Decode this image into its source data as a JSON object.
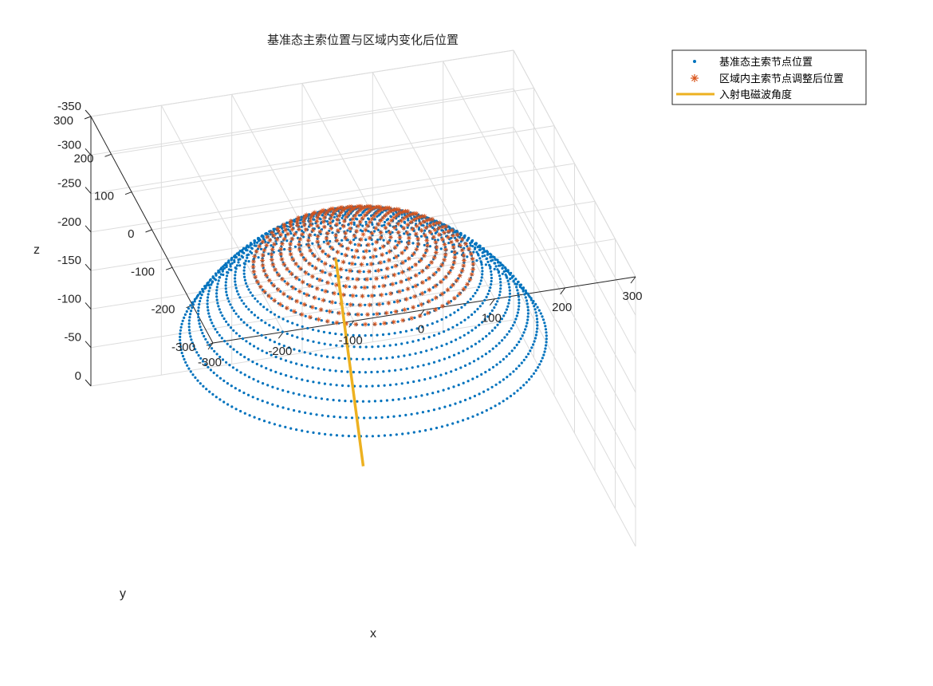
{
  "chart_data": {
    "type": "scatter3d",
    "title": "基准态主索位置与区域内变化后位置",
    "xlabel": "x",
    "ylabel": "y",
    "zlabel": "z",
    "xlim": [
      -300,
      300
    ],
    "ylim": [
      -300,
      300
    ],
    "zlim": [
      -370,
      0
    ],
    "grid": true,
    "legend_position": "top-right",
    "xticks": [
      "-300",
      "-200",
      "-100",
      "0",
      "100",
      "200",
      "300"
    ],
    "yticks": [
      "-300",
      "-200",
      "-100",
      "0",
      "100",
      "200",
      "300"
    ],
    "zticks": [
      "0",
      "-50",
      "-100",
      "-150",
      "-200",
      "-250",
      "-300",
      "-350"
    ],
    "colors": {
      "base": "#0072BD",
      "adjusted": "#D95319",
      "ray": "#EDB120",
      "axis": "#262626",
      "grid": "#dcdcdc"
    },
    "series": [
      {
        "name": "基准态主索节点位置",
        "marker": "dot",
        "surface": "sphere",
        "sphere_radius": 300.4,
        "rim_radius": 250,
        "center": [
          0,
          0,
          0
        ],
        "bottom_z": -300.4
      },
      {
        "name": "区域内主索节点调整后位置",
        "marker": "asterisk",
        "surface": "paraboloid",
        "vertex_z": -300.9,
        "focal_length": 140.1,
        "aperture_radius": 150,
        "axis_center": [
          0,
          0
        ]
      },
      {
        "name": "入射电磁波角度",
        "marker": "line",
        "start": [
          -49.6,
          -37,
          -294.4
        ],
        "end": [
          0,
          0,
          0
        ]
      }
    ]
  }
}
